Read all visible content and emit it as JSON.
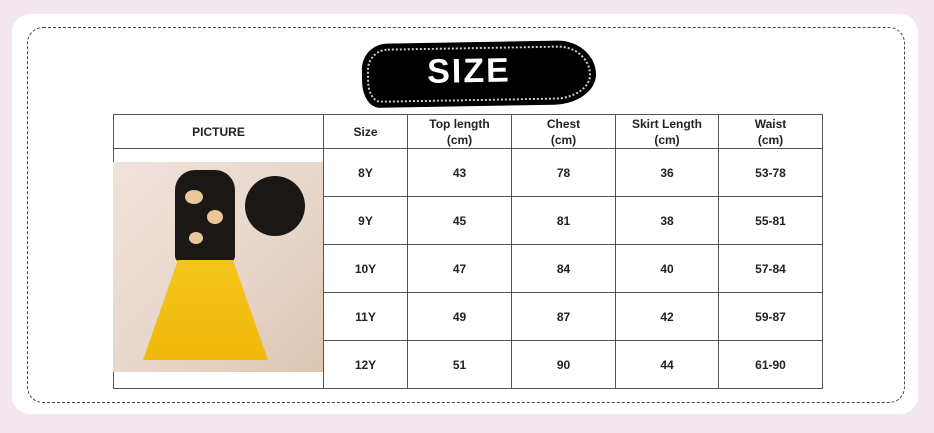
{
  "title": "SIZE",
  "table": {
    "headers": [
      [
        "PICTURE",
        ""
      ],
      [
        "Size",
        ""
      ],
      [
        "Top length",
        "(cm)"
      ],
      [
        "Chest",
        "(cm)"
      ],
      [
        "Skirt Length",
        "(cm)"
      ],
      [
        "Waist",
        "(cm)"
      ]
    ],
    "rows": [
      [
        "8Y",
        "43",
        "78",
        "36",
        "53-78"
      ],
      [
        "9Y",
        "45",
        "81",
        "38",
        "55-81"
      ],
      [
        "10Y",
        "47",
        "84",
        "40",
        "57-84"
      ],
      [
        "11Y",
        "49",
        "87",
        "42",
        "59-87"
      ],
      [
        "12Y",
        "51",
        "90",
        "44",
        "61-90"
      ]
    ]
  },
  "colors": {
    "background": "#f4e6ee",
    "badge": "#000000",
    "skirt": "#f5c51b"
  }
}
